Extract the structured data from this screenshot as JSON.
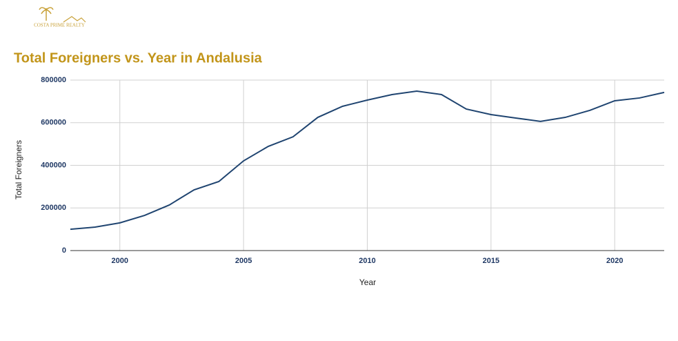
{
  "logo": {
    "brand": "COSTA PRIME REALTY"
  },
  "chart_data": {
    "type": "line",
    "title": "Total Foreigners vs. Year in Andalusia",
    "x_label": "Year",
    "y_label": "Total Foreigners",
    "x": [
      1998,
      1999,
      2000,
      2001,
      2002,
      2003,
      2004,
      2005,
      2006,
      2007,
      2008,
      2009,
      2010,
      2011,
      2012,
      2013,
      2014,
      2015,
      2016,
      2017,
      2018,
      2019,
      2020,
      2021,
      2022
    ],
    "series": [
      {
        "name": "Total Foreigners",
        "color": "#1f4470",
        "values": [
          100000,
          110000,
          130000,
          165000,
          214000,
          285000,
          324000,
          421000,
          489000,
          534000,
          625000,
          677000,
          706000,
          732000,
          748000,
          732000,
          664000,
          638000,
          622000,
          606000,
          625000,
          658000,
          703000,
          716000,
          742000
        ]
      }
    ],
    "xlim": [
      1998,
      2022
    ],
    "xticks": [
      2000,
      2005,
      2010,
      2015,
      2020
    ],
    "ylim": [
      0,
      800000
    ],
    "yticks": [
      0,
      200000,
      400000,
      600000,
      800000
    ],
    "grid": true
  }
}
